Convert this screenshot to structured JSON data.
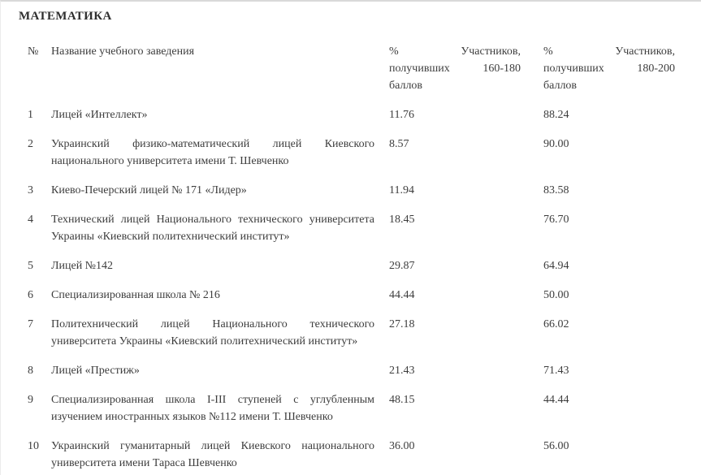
{
  "page": {
    "title": "МАТЕМАТИКА"
  },
  "colors": {
    "text": "#3d3d3d",
    "title": "#2e2e2e",
    "edge_border_top": "#d9d9d9",
    "edge_border_left": "#ececec",
    "background": "#ffffff"
  },
  "table": {
    "header": {
      "num": "№",
      "name": "Название учебного заведения",
      "col_160": {
        "percent": "%",
        "participants": "Участников,",
        "received": "получивших",
        "range": "160-180",
        "points": "баллов"
      },
      "col_180": {
        "percent": "%",
        "participants": "Участников,",
        "received": "получивших",
        "range": "180-200",
        "points": "баллов"
      }
    },
    "rows": [
      {
        "num": "1",
        "name": "Лицей «Интеллект»",
        "pct_160_180": "11.76",
        "pct_180_200": "88.24"
      },
      {
        "num": "2",
        "name": "Украинский физико-математический лицей Киевского национального университета имени Т. Шевченко",
        "pct_160_180": "8.57",
        "pct_180_200": "90.00"
      },
      {
        "num": "3",
        "name": "Киево-Печерский лицей № 171 «Лидер»",
        "pct_160_180": "11.94",
        "pct_180_200": "83.58"
      },
      {
        "num": "4",
        "name": "Технический лицей Национального технического университета Украины «Киевский политехнический институт»",
        "pct_160_180": "18.45",
        "pct_180_200": "76.70"
      },
      {
        "num": "5",
        "name": "Лицей №142",
        "pct_160_180": "29.87",
        "pct_180_200": "64.94"
      },
      {
        "num": "6",
        "name": "Специализированная школа № 216",
        "pct_160_180": "44.44",
        "pct_180_200": "50.00"
      },
      {
        "num": "7",
        "name": "Политехнический лицей Национального технического университета Украины «Киевский политехнический институт»",
        "pct_160_180": "27.18",
        "pct_180_200": "66.02"
      },
      {
        "num": "8",
        "name": "Лицей «Престиж»",
        "pct_160_180": "21.43",
        "pct_180_200": "71.43"
      },
      {
        "num": "9",
        "name": "Специализированная школа I-III ступеней с углубленным изучением иностранных языков №112 имени Т. Шевченко",
        "pct_160_180": "48.15",
        "pct_180_200": "44.44"
      },
      {
        "num": "10",
        "name": "Украинский гуманитарный лицей Киевского национального университета имени Тараса Шевченко",
        "pct_160_180": "36.00",
        "pct_180_200": "56.00"
      }
    ]
  }
}
